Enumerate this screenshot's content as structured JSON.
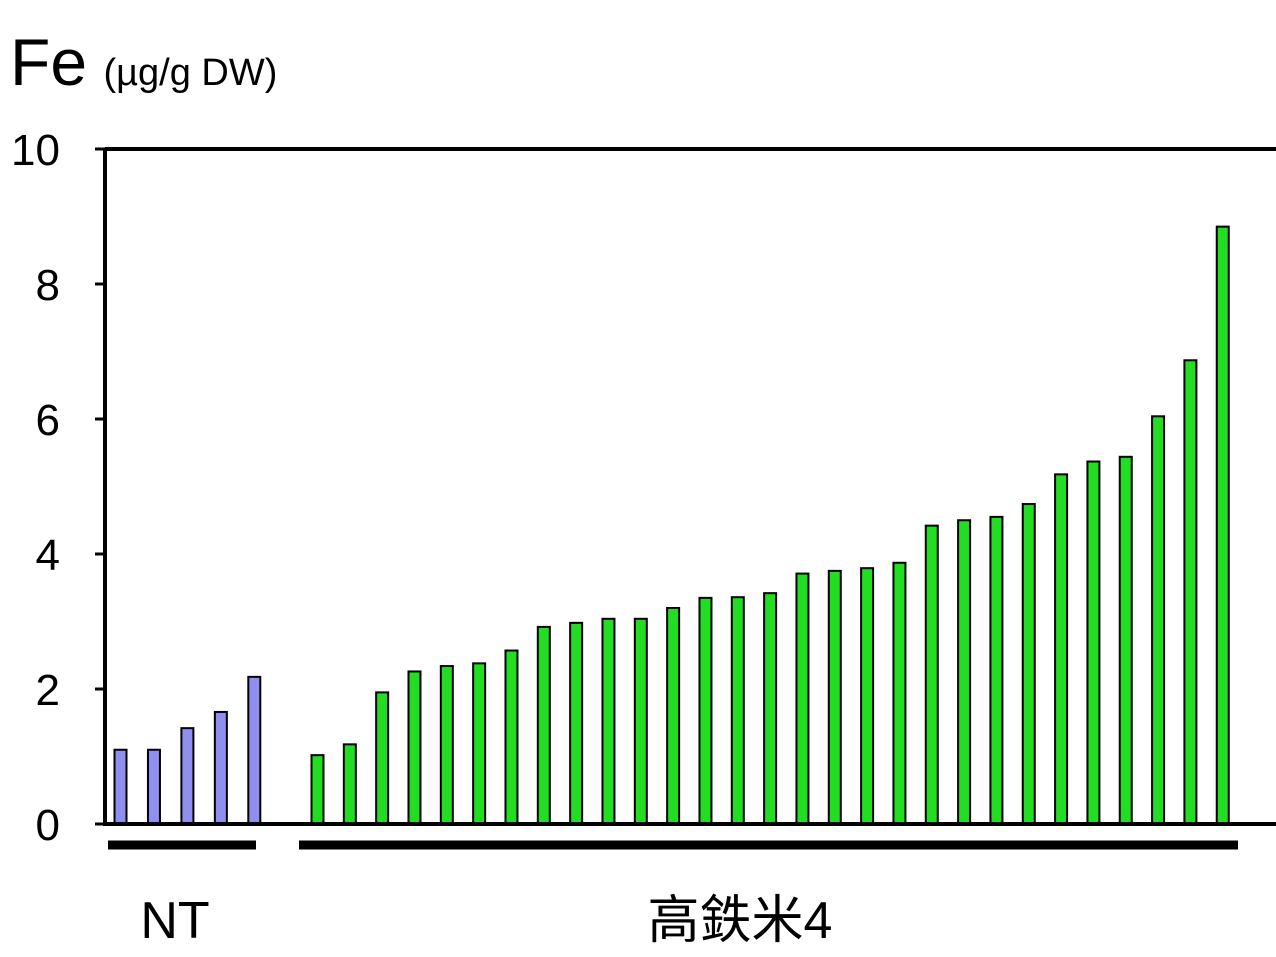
{
  "chart_data": {
    "type": "bar",
    "title": "Fe",
    "title_unit": "(µg/g DW)",
    "ylim": [
      0,
      10
    ],
    "yticks": [
      0,
      2,
      4,
      6,
      8,
      10
    ],
    "grid": false,
    "groups": [
      {
        "name": "NT",
        "color": "#8f8ff0",
        "values": [
          1.1,
          1.1,
          1.42,
          1.66,
          2.18
        ]
      },
      {
        "name": "高鉄米4",
        "color": "#22dd22",
        "values": [
          1.02,
          1.18,
          1.95,
          2.26,
          2.34,
          2.38,
          2.57,
          2.92,
          2.98,
          3.04,
          3.04,
          3.2,
          3.35,
          3.36,
          3.42,
          3.71,
          3.75,
          3.79,
          3.87,
          4.42,
          4.5,
          4.55,
          4.74,
          5.18,
          5.37,
          5.44,
          6.04,
          6.87,
          8.85
        ]
      }
    ]
  }
}
